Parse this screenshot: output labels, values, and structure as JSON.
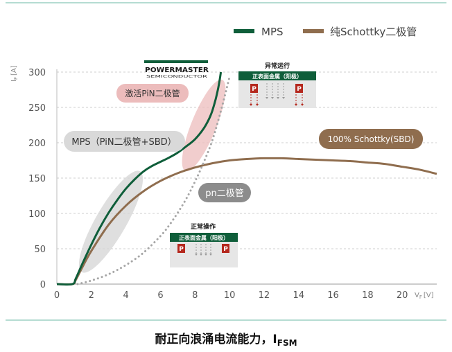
{
  "chart_data": {
    "type": "line",
    "title": "",
    "caption_main": "耐正向浪涌电流能力，I",
    "caption_sub": "FSM",
    "ylabel": "I",
    "ylabel_sub": "F",
    "ylabel_unit": "[A]",
    "xlabel": "V",
    "xlabel_sub": "F",
    "xlabel_unit": "[V]",
    "xlim": [
      0,
      22
    ],
    "ylim": [
      0,
      300
    ],
    "xticks": [
      0,
      2,
      4,
      6,
      8,
      10,
      12,
      14,
      16,
      18,
      20
    ],
    "yticks": [
      0,
      50,
      100,
      150,
      200,
      250,
      300
    ],
    "grid": "horizontal dashed",
    "legend_position": "top-right",
    "colors": {
      "mps": "#0f5e3a",
      "schottky": "#8f6d4e",
      "pn": "#a6a6a6",
      "accent_red": "#b5281e",
      "teal_line": "#6bb8a4"
    },
    "series": [
      {
        "name": "MPS",
        "style": "solid",
        "color": "#0f5e3a",
        "x": [
          0.0,
          0.9,
          1.1,
          1.5,
          2.0,
          2.5,
          3.0,
          3.5,
          4.0,
          4.5,
          5.0,
          5.5,
          6.0,
          6.5,
          7.0,
          7.5,
          8.0,
          8.5,
          8.8,
          9.0,
          9.2,
          9.35,
          9.45,
          9.5
        ],
        "y": [
          0,
          0,
          8,
          30,
          56,
          80,
          101,
          119,
          135,
          148,
          159,
          167,
          173,
          179,
          186,
          195,
          205,
          220,
          233,
          245,
          262,
          278,
          292,
          300
        ]
      },
      {
        "name": "纯Schottky二极管",
        "style": "solid",
        "color": "#8f6d4e",
        "x": [
          0.0,
          0.9,
          1.1,
          1.5,
          2.0,
          3.0,
          4.0,
          5.0,
          6.0,
          7.0,
          8.0,
          9.0,
          10.0,
          11.0,
          12.0,
          13.0,
          14.0,
          15.0,
          16.0,
          17.0,
          18.0,
          19.0,
          20.0,
          21.0,
          22.0
        ],
        "y": [
          0,
          0,
          6,
          25,
          47,
          84,
          111,
          131,
          146,
          157,
          165,
          171,
          175,
          177,
          178,
          178,
          177,
          176,
          175,
          174,
          172,
          170,
          166,
          162,
          156
        ]
      },
      {
        "style": "dotted",
        "color": "#a6a6a6",
        "x": [
          1.2,
          2.0,
          3.0,
          4.0,
          5.0,
          6.0,
          6.5,
          7.0,
          7.5,
          8.0,
          8.5,
          9.0,
          9.5,
          10.0
        ],
        "y": [
          0,
          5,
          14,
          27,
          44,
          68,
          83,
          101,
          121,
          145,
          172,
          203,
          245,
          293
        ]
      }
    ],
    "annotations": {
      "brand": "POWERMASTER",
      "brand_sub": "SEMICONDUCTOR",
      "activate_pin": "激活PiN二极管",
      "mps_label": "MPS（PiN二极管+SBD）",
      "pn_label": "pn二极管",
      "schottky_label": "100% Schottky(SBD)",
      "normal_op_title": "正常操作",
      "abnormal_op_title": "异常运行",
      "metal_label": "正表面金属（阳极）",
      "p_region": "P"
    }
  }
}
